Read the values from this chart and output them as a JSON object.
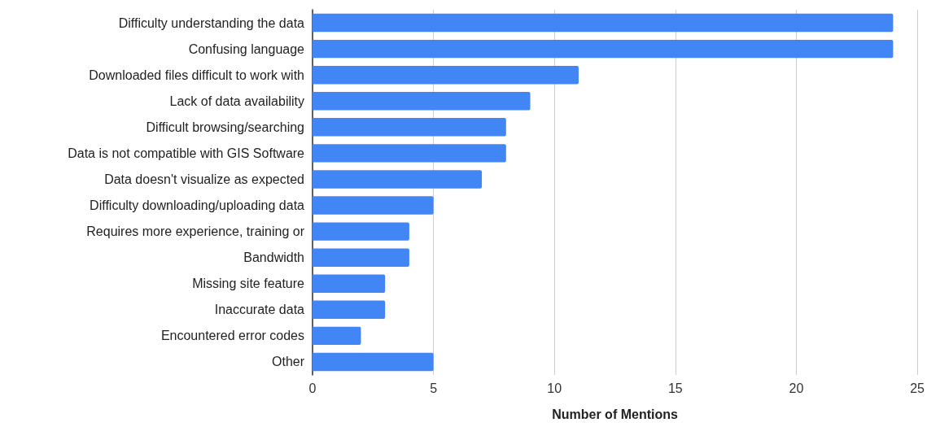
{
  "chart_data": {
    "type": "bar",
    "orientation": "horizontal",
    "xlabel": "Number of Mentions",
    "categories": [
      "Difficulty understanding the data",
      "Confusing language",
      "Downloaded files difficult to work with",
      "Lack of data availability",
      "Difficult browsing/searching",
      "Data is not compatible with GIS Software",
      "Data doesn't visualize as expected",
      "Difficulty downloading/uploading data",
      "Requires more experience, training or",
      "Bandwidth",
      "Missing site feature",
      "Inaccurate data",
      "Encountered error codes",
      "Other"
    ],
    "values": [
      24,
      24,
      11,
      9,
      8,
      8,
      7,
      5,
      4,
      4,
      3,
      3,
      2,
      5
    ],
    "color": "#4285f4",
    "xlim": [
      0,
      25
    ],
    "xticks": [
      0,
      5,
      10,
      15,
      20,
      25
    ],
    "grid": "x"
  }
}
